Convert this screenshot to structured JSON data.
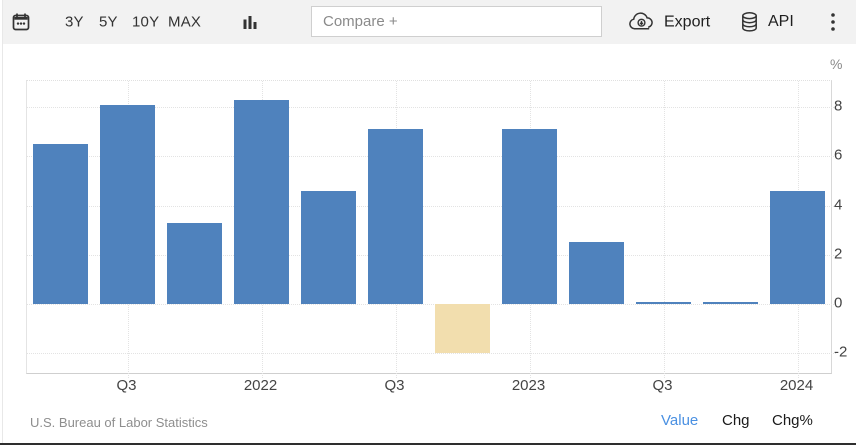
{
  "toolbar": {
    "range_buttons": [
      "3Y",
      "5Y",
      "10Y",
      "MAX"
    ],
    "compare_placeholder": "Compare +",
    "export_label": "Export",
    "api_label": "API",
    "icons": [
      "calendar-icon",
      "bar-chart-icon",
      "cloud-download-icon",
      "database-icon",
      "kebab-menu-icon"
    ]
  },
  "chart_data": {
    "type": "bar",
    "unit": "%",
    "categories": [
      "",
      "Q3",
      "",
      "2022",
      "",
      "Q3",
      "",
      "2023",
      "",
      "Q3",
      "",
      "2024"
    ],
    "values": [
      6.5,
      8.1,
      3.3,
      8.3,
      4.6,
      7.1,
      -2.0,
      7.1,
      2.5,
      0.1,
      0.1,
      4.6
    ],
    "highlight_index": 6,
    "bar_color": "#4f82bd",
    "highlight_color": "#f2deae",
    "yticks": [
      8,
      6,
      4,
      2,
      0,
      -2
    ],
    "ylim": [
      -2.8,
      9.1
    ],
    "grid": "dotted",
    "legend": "none",
    "y_axis_position": "right",
    "title": ""
  },
  "footer": {
    "source": "U.S. Bureau of Labor Statistics",
    "links": [
      {
        "label": "Value",
        "active": true,
        "color": "#4a90e2"
      },
      {
        "label": "Chg",
        "active": false,
        "color": "#1a1a1a"
      },
      {
        "label": "Chg%",
        "active": false,
        "color": "#1a1a1a"
      }
    ]
  }
}
